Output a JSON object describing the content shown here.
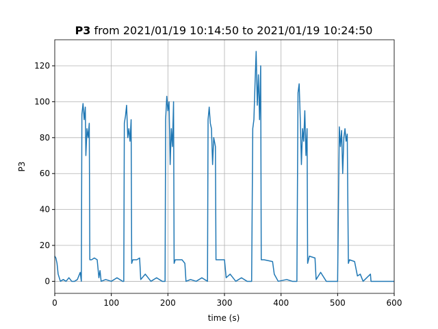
{
  "chart_data": {
    "type": "line",
    "title": {
      "bold": "P3",
      "text": "from 2021/01/19 10:14:50 to 2021/01/19 10:24:50"
    },
    "x_label": "time (s)",
    "y_label": "P3",
    "x": [
      0,
      2,
      4,
      6,
      8,
      10,
      15,
      20,
      25,
      30,
      35,
      40,
      45,
      47,
      48,
      50,
      52,
      54,
      55,
      57,
      59,
      61,
      62,
      63,
      65,
      70,
      75,
      78,
      80,
      82,
      90,
      100,
      110,
      120,
      122,
      123,
      125,
      127,
      129,
      131,
      133,
      135,
      136,
      138,
      145,
      150,
      152,
      160,
      170,
      180,
      190,
      195,
      196,
      198,
      200,
      202,
      204,
      206,
      208,
      210,
      211,
      213,
      225,
      230,
      232,
      240,
      250,
      260,
      270,
      271,
      273,
      275,
      277,
      279,
      281,
      284,
      285,
      290,
      300,
      303,
      310,
      320,
      330,
      340,
      348,
      350,
      352,
      354,
      356,
      358,
      360,
      362,
      364,
      365,
      370,
      385,
      388,
      395,
      410,
      420,
      428,
      430,
      432,
      434,
      436,
      438,
      440,
      442,
      444,
      446,
      447,
      450,
      460,
      462,
      470,
      480,
      490,
      500,
      503,
      505,
      507,
      509,
      511,
      513,
      515,
      517,
      519,
      521,
      530,
      535,
      540,
      545,
      558,
      559,
      600
    ],
    "values": [
      14,
      13,
      10,
      4,
      2,
      0,
      1,
      0,
      2,
      0,
      0,
      1,
      5,
      0,
      93,
      99,
      90,
      97,
      70,
      85,
      80,
      88,
      12,
      12,
      12,
      13,
      12,
      2,
      6,
      0,
      1,
      0,
      2,
      0,
      0,
      88,
      92,
      98,
      80,
      85,
      78,
      90,
      10,
      12,
      12,
      13,
      1,
      4,
      0,
      2,
      0,
      0,
      90,
      103,
      95,
      100,
      65,
      85,
      75,
      100,
      10,
      12,
      12,
      10,
      0,
      1,
      0,
      2,
      0,
      90,
      97,
      88,
      85,
      65,
      80,
      75,
      12,
      12,
      12,
      2,
      4,
      0,
      2,
      0,
      0,
      85,
      90,
      110,
      128,
      98,
      115,
      90,
      120,
      12,
      12,
      11,
      4,
      0,
      1,
      0,
      0,
      105,
      110,
      90,
      65,
      85,
      78,
      95,
      70,
      85,
      10,
      14,
      13,
      1,
      5,
      0,
      0,
      0,
      86,
      75,
      84,
      60,
      80,
      85,
      78,
      82,
      10,
      12,
      11,
      3,
      4,
      0,
      4,
      0,
      0
    ],
    "color": "#1f77b4",
    "xlim": [
      0,
      600
    ],
    "xticks": [
      0,
      100,
      200,
      300,
      400,
      500,
      600
    ],
    "ylim": [
      -6.7,
      134.5
    ],
    "yticks": [
      0,
      20,
      40,
      60,
      80,
      100,
      120
    ],
    "grid": true
  }
}
